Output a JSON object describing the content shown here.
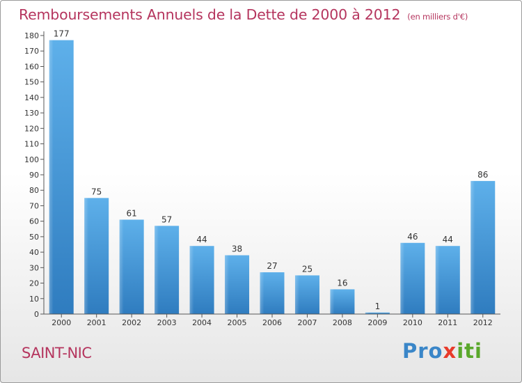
{
  "title": "Remboursements Annuels de la Dette de 2000 à 2012",
  "unit": "(en milliers d'€)",
  "commune": "SAINT-NIC",
  "logo": {
    "p1": "Pro",
    "p2": "x",
    "p3": "iti"
  },
  "colors": {
    "accent": "#b5355e",
    "bar_top": "#5eb0ea",
    "bar_bottom": "#2f7cbf"
  },
  "chart_data": {
    "type": "bar",
    "categories": [
      "2000",
      "2001",
      "2002",
      "2003",
      "2004",
      "2005",
      "2006",
      "2007",
      "2008",
      "2009",
      "2010",
      "2011",
      "2012"
    ],
    "values": [
      177,
      75,
      61,
      57,
      44,
      38,
      27,
      25,
      16,
      1,
      46,
      44,
      86
    ],
    "ylim": [
      0,
      180
    ],
    "yticks": [
      0,
      10,
      20,
      30,
      40,
      50,
      60,
      70,
      80,
      90,
      100,
      110,
      120,
      130,
      140,
      150,
      160,
      170,
      180
    ],
    "grid": false,
    "legend": "none"
  }
}
